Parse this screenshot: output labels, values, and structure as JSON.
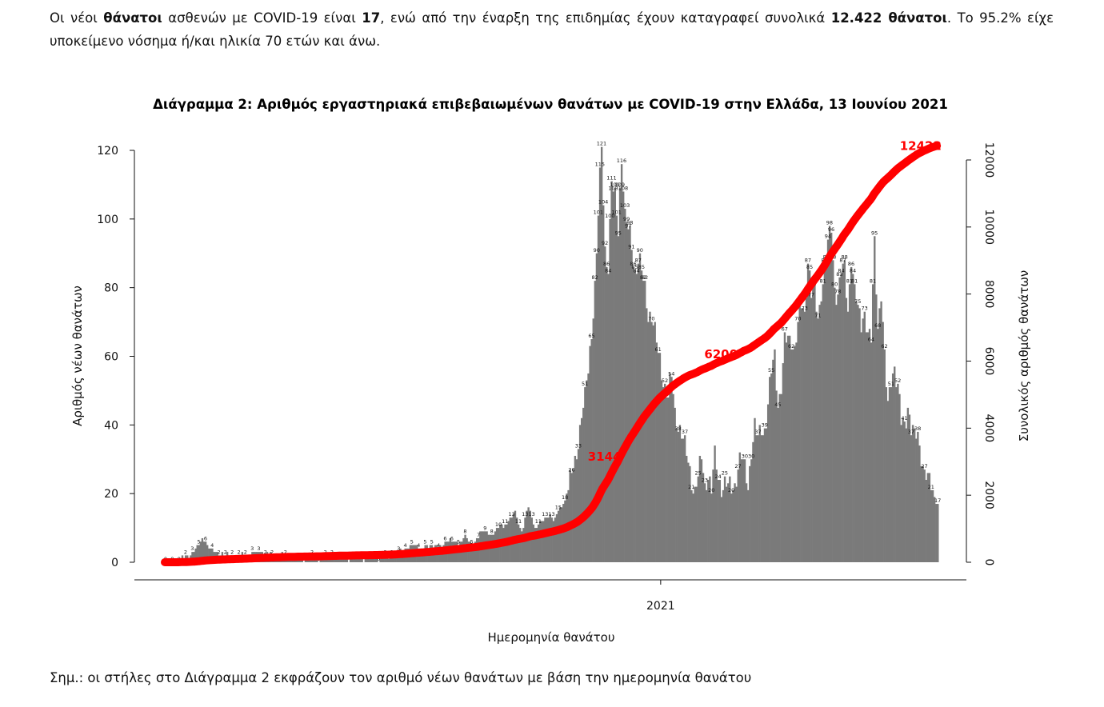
{
  "paragraph": {
    "p1": "Οι νέοι ",
    "b1": "θάνατοι",
    "p2": " ασθενών με COVID-19 είναι ",
    "b2": "17",
    "p3": ", ενώ από την έναρξη της επιδημίας έχουν καταγραφεί συνολικά ",
    "b3": "12.422 θάνατοι",
    "p4": ".  Το 95.2% είχε υποκείμενο νόσημα ή/και ηλικία 70 ετών και άνω."
  },
  "note": "Σημ.: οι στήλες στο Διάγραμμα 2 εκφράζουν τον αριθμό νέων θανάτων με βάση την ημερομηνία θανάτου",
  "chart_data": {
    "type": "bar",
    "title": "Διάγραμμα 2: Αριθμός εργαστηριακά επιβεβαιωμένων θανάτων με COVID-19 στην Ελλάδα, 13 Ιουνίου 2021",
    "xlabel": "Ημερομηνία θανάτου",
    "ylabel": "Αριθμός νέων θανάτων",
    "y2label": "Συνολικός αριθμός θανάτων",
    "ylim": [
      0,
      120
    ],
    "y2lim": [
      0,
      12000
    ],
    "yticks": [
      0,
      20,
      40,
      60,
      80,
      100,
      120
    ],
    "y2ticks": [
      0,
      2000,
      4000,
      6000,
      8000,
      10000,
      12000
    ],
    "xtick_label": "2021",
    "x_tick_index": 298,
    "bar_color": "#7a7a7a",
    "line_color": "#ff0000",
    "line_annotations": [
      {
        "label": "3144",
        "index": 270,
        "value": 3144
      },
      {
        "label": "6200",
        "index": 340,
        "value": 6200
      },
      {
        "label": "12422",
        "index": 460,
        "value": 12422
      }
    ],
    "anchors": [
      [
        0,
        0
      ],
      [
        5,
        0
      ],
      [
        10,
        1
      ],
      [
        15,
        2
      ],
      [
        18,
        4
      ],
      [
        20,
        5
      ],
      [
        22,
        7
      ],
      [
        24,
        6
      ],
      [
        26,
        4
      ],
      [
        28,
        3
      ],
      [
        32,
        3
      ],
      [
        36,
        2
      ],
      [
        40,
        2
      ],
      [
        48,
        2
      ],
      [
        56,
        3
      ],
      [
        62,
        2
      ],
      [
        70,
        2
      ],
      [
        80,
        1
      ],
      [
        90,
        1
      ],
      [
        100,
        2
      ],
      [
        110,
        1
      ],
      [
        120,
        1
      ],
      [
        128,
        1
      ],
      [
        134,
        2
      ],
      [
        140,
        3
      ],
      [
        146,
        4
      ],
      [
        150,
        5
      ],
      [
        156,
        4
      ],
      [
        162,
        5
      ],
      [
        166,
        4
      ],
      [
        170,
        7
      ],
      [
        176,
        5
      ],
      [
        180,
        8
      ],
      [
        184,
        5
      ],
      [
        190,
        9
      ],
      [
        196,
        8
      ],
      [
        200,
        10
      ],
      [
        206,
        12
      ],
      [
        210,
        14
      ],
      [
        214,
        9
      ],
      [
        218,
        16
      ],
      [
        222,
        10
      ],
      [
        226,
        12
      ],
      [
        230,
        14
      ],
      [
        234,
        12
      ],
      [
        236,
        15
      ],
      [
        240,
        18
      ],
      [
        243,
        23
      ],
      [
        246,
        30
      ],
      [
        249,
        39
      ],
      [
        252,
        47
      ],
      [
        255,
        62
      ],
      [
        258,
        80
      ],
      [
        260,
        100
      ],
      [
        262,
        121
      ],
      [
        264,
        92
      ],
      [
        266,
        86
      ],
      [
        268,
        110
      ],
      [
        270,
        105
      ],
      [
        272,
        98
      ],
      [
        274,
        119
      ],
      [
        276,
        100
      ],
      [
        278,
        96
      ],
      [
        280,
        93
      ],
      [
        282,
        85
      ],
      [
        284,
        88
      ],
      [
        286,
        84
      ],
      [
        288,
        79
      ],
      [
        290,
        73
      ],
      [
        292,
        72
      ],
      [
        294,
        66
      ],
      [
        296,
        61
      ],
      [
        298,
        56
      ],
      [
        300,
        52
      ],
      [
        302,
        48
      ],
      [
        304,
        53
      ],
      [
        306,
        44
      ],
      [
        308,
        41
      ],
      [
        310,
        37
      ],
      [
        312,
        33
      ],
      [
        314,
        29
      ],
      [
        316,
        25
      ],
      [
        318,
        21
      ],
      [
        320,
        24
      ],
      [
        322,
        30
      ],
      [
        324,
        23
      ],
      [
        326,
        26
      ],
      [
        328,
        20
      ],
      [
        330,
        30
      ],
      [
        332,
        25
      ],
      [
        334,
        23
      ],
      [
        336,
        22
      ],
      [
        338,
        21
      ],
      [
        340,
        22
      ],
      [
        342,
        23
      ],
      [
        344,
        28
      ],
      [
        346,
        30
      ],
      [
        348,
        27
      ],
      [
        350,
        23
      ],
      [
        352,
        33
      ],
      [
        354,
        38
      ],
      [
        356,
        36
      ],
      [
        358,
        40
      ],
      [
        360,
        39
      ],
      [
        362,
        45
      ],
      [
        364,
        55
      ],
      [
        366,
        60
      ],
      [
        368,
        47
      ],
      [
        370,
        51
      ],
      [
        372,
        63
      ],
      [
        374,
        65
      ],
      [
        376,
        66
      ],
      [
        378,
        62
      ],
      [
        380,
        68
      ],
      [
        382,
        74
      ],
      [
        384,
        73
      ],
      [
        386,
        89
      ],
      [
        388,
        78
      ],
      [
        390,
        77
      ],
      [
        392,
        71
      ],
      [
        394,
        80
      ],
      [
        396,
        85
      ],
      [
        398,
        92
      ],
      [
        400,
        98
      ],
      [
        402,
        80
      ],
      [
        404,
        78
      ],
      [
        406,
        84
      ],
      [
        408,
        85
      ],
      [
        410,
        74
      ],
      [
        412,
        90
      ],
      [
        414,
        78
      ],
      [
        416,
        73
      ],
      [
        418,
        70
      ],
      [
        420,
        74
      ],
      [
        422,
        66
      ],
      [
        424,
        64
      ],
      [
        426,
        93
      ],
      [
        428,
        70
      ],
      [
        430,
        79
      ],
      [
        432,
        58
      ],
      [
        434,
        45
      ],
      [
        436,
        55
      ],
      [
        438,
        57
      ],
      [
        440,
        50
      ],
      [
        442,
        40
      ],
      [
        444,
        41
      ],
      [
        446,
        46
      ],
      [
        448,
        39
      ],
      [
        450,
        36
      ],
      [
        452,
        37
      ],
      [
        454,
        32
      ],
      [
        456,
        26
      ],
      [
        458,
        23
      ],
      [
        460,
        22
      ],
      [
        462,
        19
      ],
      [
        464,
        17
      ]
    ],
    "total": 12422
  }
}
